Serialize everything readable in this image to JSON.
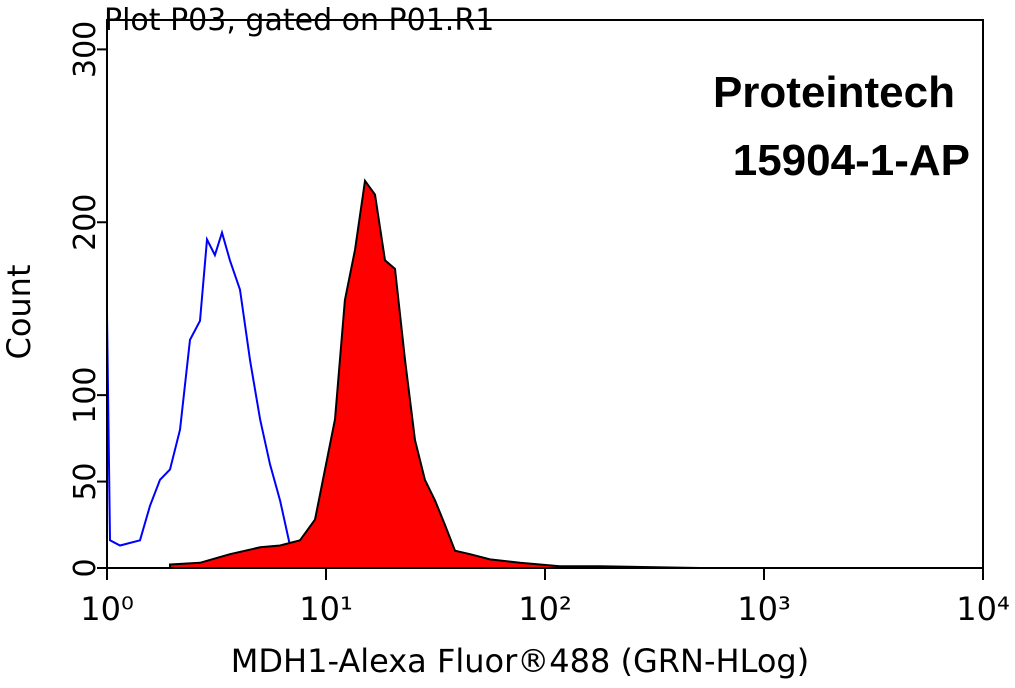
{
  "chart_data": {
    "type": "histogram-overlay",
    "title": "Plot P03, gated on P01.R1",
    "annotations": [
      "Proteintech",
      "15904-1-AP"
    ],
    "xlabel": "MDH1-Alexa Fluor®488 (GRN-HLog)",
    "ylabel": "Count",
    "xscale": "log",
    "xlim": [
      1,
      10000
    ],
    "xticks": [
      {
        "value": 1,
        "label": "10⁰"
      },
      {
        "value": 10,
        "label": "10¹"
      },
      {
        "value": 100,
        "label": "10²"
      },
      {
        "value": 1000,
        "label": "10³"
      },
      {
        "value": 10000,
        "label": "10⁴"
      }
    ],
    "ylim": [
      0,
      317
    ],
    "yticks": [
      0,
      50,
      100,
      200,
      300
    ],
    "series": [
      {
        "style": "line",
        "color": "#0000ff",
        "x": [
          1.0,
          1.0,
          1.032,
          1.147,
          1.415,
          1.571,
          1.746,
          1.94,
          2.155,
          2.394,
          2.66,
          2.862,
          3.11,
          3.35,
          3.64,
          4.05,
          4.5,
          5.0,
          5.55,
          6.17,
          6.85,
          7.61
        ],
        "values": [
          0,
          147,
          16,
          13,
          16,
          36,
          51,
          57,
          80,
          132,
          143,
          190,
          181,
          194,
          178,
          161,
          120,
          86,
          60,
          39,
          13,
          0
        ]
      },
      {
        "style": "area",
        "color": "#ff0000",
        "x": [
          1.94,
          2.66,
          3.64,
          5.0,
          6.17,
          7.61,
          8.91,
          9.9,
          10.99,
          12.2,
          13.56,
          15.07,
          16.74,
          18.6,
          20.65,
          22.96,
          25.5,
          28.3,
          31.5,
          34.9,
          38.8,
          45.5,
          56.1,
          76.9,
          117,
          178,
          510,
          10000
        ],
        "values": [
          2,
          3,
          8,
          12,
          13,
          16,
          28,
          57,
          86,
          155,
          184,
          224,
          216,
          178,
          173,
          120,
          74,
          51,
          39,
          25,
          10,
          8,
          5,
          3,
          1,
          1,
          0,
          0
        ]
      }
    ]
  }
}
